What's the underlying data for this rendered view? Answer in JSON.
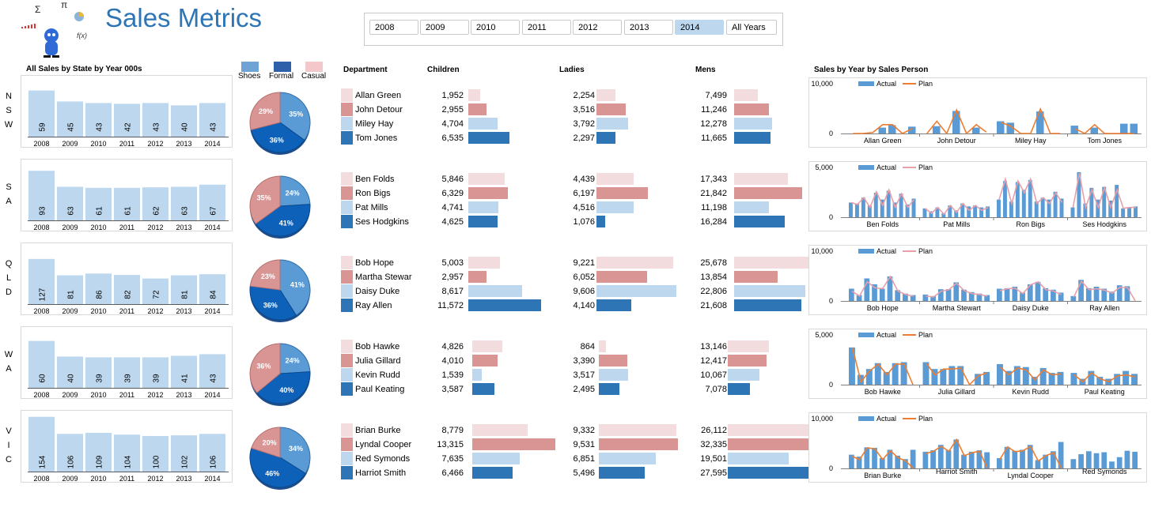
{
  "title": "Sales Metrics",
  "logo_symbols": [
    "Σ",
    "π",
    "f(x)"
  ],
  "years": [
    "2008",
    "2009",
    "2010",
    "2011",
    "2012",
    "2013",
    "2014"
  ],
  "all_years_label": "All Years",
  "selected_year": "2014",
  "headers": {
    "state_sales": "All Sales by State by Year 000s",
    "department": "Department",
    "children": "Children",
    "ladies": "Ladies",
    "mens": "Mens",
    "sales_person": "Sales by Year by Sales Person"
  },
  "legend": [
    {
      "label": "Shoes",
      "color": "#6fa3d6"
    },
    {
      "label": "Formal",
      "color": "#2e5fa9"
    },
    {
      "label": "Casual",
      "color": "#f4c7cb"
    }
  ],
  "colors": {
    "light_pink": "#f2dcdd",
    "pink": "#d99594",
    "light_blue": "#bdd7ee",
    "blue": "#2e75b6",
    "actual": "#5b9bd5",
    "plan": "#ed7d31"
  },
  "chart_data": [
    {
      "state": "NSW",
      "yearly": {
        "type": "bar",
        "categories": [
          "2008",
          "2009",
          "2010",
          "2011",
          "2012",
          "2013",
          "2014"
        ],
        "values": [
          59,
          45,
          43,
          42,
          43,
          40,
          43
        ]
      },
      "pie": {
        "type": "pie",
        "slices": [
          {
            "name": "Shoes",
            "value": 35,
            "label": "35%"
          },
          {
            "name": "Formal",
            "value": 36,
            "label": "36%"
          },
          {
            "name": "Casual",
            "value": 29,
            "label": "29%"
          }
        ]
      },
      "people": [
        {
          "name": "Allan Green",
          "children": "1,952",
          "ladies": "2,254",
          "mens": "7,499"
        },
        {
          "name": "John Detour",
          "children": "2,955",
          "ladies": "3,516",
          "mens": "11,246"
        },
        {
          "name": "Miley Hay",
          "children": "4,704",
          "ladies": "3,792",
          "mens": "12,278"
        },
        {
          "name": "Tom Jones",
          "children": "6,535",
          "ladies": "2,297",
          "mens": "11,665"
        }
      ],
      "combo": {
        "type": "bar",
        "ymax_label": "10,000",
        "ymin_label": "0",
        "ymax": 10000,
        "actual_label": "Actual",
        "plan_label": "Plan",
        "plan_color": "#ed7d31",
        "groups": [
          "Allan Green",
          "John Detour",
          "Miley Hay",
          "Tom Jones"
        ],
        "actual": [
          [
            0,
            0,
            0,
            1200,
            1700,
            0,
            1400
          ],
          [
            0,
            1500,
            0,
            4600,
            0,
            1200,
            0
          ],
          [
            2500,
            2200,
            0,
            0,
            4500,
            0,
            0
          ],
          [
            1600,
            0,
            1200,
            0,
            0,
            2000,
            2000
          ]
        ],
        "plan": [
          [
            0,
            0,
            200,
            1800,
            1800,
            0,
            1000
          ],
          [
            0,
            2500,
            0,
            4800,
            0,
            1800,
            300
          ],
          [
            2300,
            1500,
            0,
            0,
            5000,
            0,
            0
          ],
          [
            1000,
            0,
            1800,
            0,
            0,
            0,
            0
          ]
        ]
      }
    },
    {
      "state": "SA",
      "yearly": {
        "type": "bar",
        "categories": [
          "2008",
          "2009",
          "2010",
          "2011",
          "2012",
          "2013",
          "2014"
        ],
        "values": [
          93,
          63,
          61,
          61,
          62,
          63,
          67
        ]
      },
      "pie": {
        "type": "pie",
        "slices": [
          {
            "name": "Shoes",
            "value": 24,
            "label": "24%"
          },
          {
            "name": "Formal",
            "value": 41,
            "label": "41%"
          },
          {
            "name": "Casual",
            "value": 35,
            "label": "35%"
          }
        ]
      },
      "people": [
        {
          "name": "Ben Folds",
          "children": "5,846",
          "ladies": "4,439",
          "mens": "17,343"
        },
        {
          "name": "Ron Bigs",
          "children": "6,329",
          "ladies": "6,197",
          "mens": "21,842"
        },
        {
          "name": "Pat Mills",
          "children": "4,741",
          "ladies": "4,516",
          "mens": "11,198"
        },
        {
          "name": "Ses Hodgkins",
          "children": "4,625",
          "ladies": "1,076",
          "mens": "16,284"
        }
      ],
      "combo": {
        "type": "bar",
        "ymax_label": "5,000",
        "ymin_label": "0",
        "ymax": 5000,
        "actual_label": "Actual",
        "plan_label": "Plan",
        "plan_color": "#e8a0a8",
        "groups": [
          "Ben Folds",
          "Pat Mills",
          "Ron Bigs",
          "Ses Hodgkins"
        ],
        "actual": [
          [
            1500,
            1400,
            2000,
            1200,
            2500,
            1800,
            2700,
            1500,
            2400,
            1300,
            1900
          ],
          [
            900,
            600,
            1000,
            400,
            1200,
            700,
            1400,
            1100,
            1200,
            1000,
            1100
          ],
          [
            1800,
            3700,
            1600,
            3600,
            2800,
            3800,
            1600,
            2000,
            1800,
            2600,
            1900
          ],
          [
            1000,
            4600,
            1400,
            3000,
            1800,
            3100,
            1700,
            3300,
            900,
            1000,
            1100
          ]
        ],
        "plan": [
          [
            1500,
            1300,
            2000,
            1000,
            2600,
            1200,
            2800,
            1000,
            2400,
            1000,
            1800
          ],
          [
            900,
            400,
            1000,
            300,
            1200,
            500,
            1400,
            700,
            1200,
            700,
            1000
          ],
          [
            1800,
            3900,
            1400,
            3700,
            2500,
            3900,
            1400,
            2000,
            1400,
            2500,
            1500
          ],
          [
            1000,
            4500,
            1000,
            2800,
            1000,
            3000,
            1000,
            2800,
            900,
            1000,
            1000
          ]
        ]
      }
    },
    {
      "state": "QLD",
      "yearly": {
        "type": "bar",
        "categories": [
          "2008",
          "2009",
          "2010",
          "2011",
          "2012",
          "2013",
          "2014"
        ],
        "values": [
          127,
          81,
          86,
          82,
          72,
          81,
          84
        ]
      },
      "pie": {
        "type": "pie",
        "slices": [
          {
            "name": "Shoes",
            "value": 41,
            "label": "41%"
          },
          {
            "name": "Formal",
            "value": 36,
            "label": "36%"
          },
          {
            "name": "Casual",
            "value": 23,
            "label": "23%"
          }
        ]
      },
      "people": [
        {
          "name": "Bob Hope",
          "children": "5,003",
          "ladies": "9,221",
          "mens": "25,678"
        },
        {
          "name": "Martha Stewar",
          "children": "2,957",
          "ladies": "6,052",
          "mens": "13,854"
        },
        {
          "name": "Daisy Duke",
          "children": "8,617",
          "ladies": "9,606",
          "mens": "22,806"
        },
        {
          "name": "Ray Allen",
          "children": "11,572",
          "ladies": "4,140",
          "mens": "21,608"
        }
      ],
      "combo": {
        "type": "bar",
        "ymax_label": "10,000",
        "ymin_label": "0",
        "ymax": 10000,
        "actual_label": "Actual",
        "plan_label": "Plan",
        "plan_color": "#e8a0a8",
        "groups": [
          "Bob Hope",
          "Martha Stewart",
          "Daisy Duke",
          "Ray Allen"
        ],
        "actual": [
          [
            2500,
            1200,
            4600,
            3400,
            2500,
            5000,
            2200,
            1500,
            1200
          ],
          [
            1300,
            1000,
            2400,
            2400,
            3800,
            2300,
            1800,
            1500,
            1200
          ],
          [
            2500,
            2600,
            2900,
            1700,
            3400,
            3900,
            2600,
            2300,
            1700
          ],
          [
            1000,
            4300,
            2600,
            2900,
            2500,
            1900,
            3200,
            3000,
            0
          ]
        ],
        "plan": [
          [
            2000,
            1000,
            3900,
            2700,
            2500,
            5000,
            2000,
            1300,
            1000
          ],
          [
            1000,
            800,
            2000,
            2300,
            3600,
            2100,
            1500,
            1300,
            1000
          ],
          [
            2100,
            2500,
            2600,
            1500,
            3300,
            3900,
            2300,
            2000,
            1300
          ],
          [
            800,
            4000,
            2300,
            2500,
            2200,
            1600,
            2800,
            2700,
            0
          ]
        ]
      }
    },
    {
      "state": "WA",
      "yearly": {
        "type": "bar",
        "categories": [
          "2008",
          "2009",
          "2010",
          "2011",
          "2012",
          "2013",
          "2014"
        ],
        "values": [
          60,
          40,
          39,
          39,
          39,
          41,
          43
        ]
      },
      "pie": {
        "type": "pie",
        "slices": [
          {
            "name": "Shoes",
            "value": 24,
            "label": "24%"
          },
          {
            "name": "Formal",
            "value": 40,
            "label": "40%"
          },
          {
            "name": "Casual",
            "value": 36,
            "label": "36%"
          }
        ]
      },
      "people": [
        {
          "name": "Bob Hawke",
          "children": "4,826",
          "ladies": "864",
          "mens": "13,146"
        },
        {
          "name": "Julia Gillard",
          "children": "4,010",
          "ladies": "3,390",
          "mens": "12,417"
        },
        {
          "name": "Kevin Rudd",
          "children": "1,539",
          "ladies": "3,517",
          "mens": "10,067"
        },
        {
          "name": "Paul Keating",
          "children": "3,587",
          "ladies": "2,495",
          "mens": "7,078"
        }
      ],
      "combo": {
        "type": "bar",
        "ymax_label": "5,000",
        "ymin_label": "0",
        "ymax": 5000,
        "actual_label": "Actual",
        "plan_label": "Plan",
        "plan_color": "#ed7d31",
        "groups": [
          "Bob Hawke",
          "Julia Gillard",
          "Kevin Rudd",
          "Paul Keating"
        ],
        "actual": [
          [
            3800,
            1000,
            1600,
            2200,
            1300,
            2200,
            2300,
            0
          ],
          [
            2300,
            1600,
            1600,
            1900,
            1900,
            0,
            1100,
            1300
          ],
          [
            2100,
            1400,
            1900,
            1800,
            800,
            1700,
            1200,
            1300
          ],
          [
            1200,
            600,
            1400,
            800,
            600,
            1100,
            1400,
            1100
          ]
        ],
        "plan": [
          [
            3800,
            300,
            1400,
            2100,
            1000,
            2100,
            2100,
            0
          ],
          [
            2200,
            1000,
            1600,
            1600,
            1700,
            0,
            900,
            1200
          ],
          [
            1800,
            1000,
            1700,
            1500,
            500,
            1500,
            1000,
            1100
          ],
          [
            1000,
            300,
            1200,
            600,
            300,
            900,
            1000,
            800
          ]
        ]
      }
    },
    {
      "state": "VIC",
      "yearly": {
        "type": "bar",
        "categories": [
          "2008",
          "2009",
          "2010",
          "2011",
          "2012",
          "2013",
          "2014"
        ],
        "values": [
          154,
          106,
          109,
          104,
          100,
          102,
          106
        ]
      },
      "pie": {
        "type": "pie",
        "slices": [
          {
            "name": "Shoes",
            "value": 34,
            "label": "34%"
          },
          {
            "name": "Formal",
            "value": 46,
            "label": "46%"
          },
          {
            "name": "Casual",
            "value": 20,
            "label": "20%"
          }
        ]
      },
      "people": [
        {
          "name": "Brian Burke",
          "children": "8,779",
          "ladies": "9,332",
          "mens": "26,112"
        },
        {
          "name": "Lyndal Cooper",
          "children": "13,315",
          "ladies": "9,531",
          "mens": "32,335"
        },
        {
          "name": "Red Symonds",
          "children": "7,635",
          "ladies": "6,851",
          "mens": "19,501"
        },
        {
          "name": "Harriot Smith",
          "children": "6,466",
          "ladies": "5,496",
          "mens": "27,595"
        }
      ],
      "combo": {
        "type": "bar",
        "ymax_label": "10,000",
        "ymin_label": "0",
        "ymax": 10000,
        "actual_label": "Actual",
        "plan_label": "Plan",
        "plan_color": "#ed7d31",
        "groups": [
          "Brian Burke",
          "Harriot Smith",
          "Lyndal Cooper",
          "Red Symonds"
        ],
        "actual": [
          [
            2800,
            2400,
            4300,
            4200,
            2100,
            3800,
            2600,
            1900,
            3800
          ],
          [
            3400,
            3700,
            4800,
            3700,
            5900,
            2800,
            3400,
            3700,
            3300
          ],
          [
            2100,
            4400,
            3600,
            3800,
            4800,
            1700,
            2800,
            3500,
            5400
          ],
          [
            1900,
            2900,
            3500,
            3100,
            3300,
            1400,
            2300,
            3600,
            3400
          ]
        ],
        "plan": [
          [
            2500,
            1800,
            4200,
            4000,
            1800,
            3600,
            2200,
            1500,
            0
          ],
          [
            3000,
            3500,
            4500,
            3500,
            5900,
            2600,
            3200,
            3500,
            0
          ],
          [
            1800,
            4400,
            3400,
            3600,
            4500,
            1500,
            2600,
            3200,
            0
          ],
          [
            0,
            0,
            0,
            0,
            0,
            0,
            0,
            0,
            0
          ]
        ]
      }
    }
  ]
}
